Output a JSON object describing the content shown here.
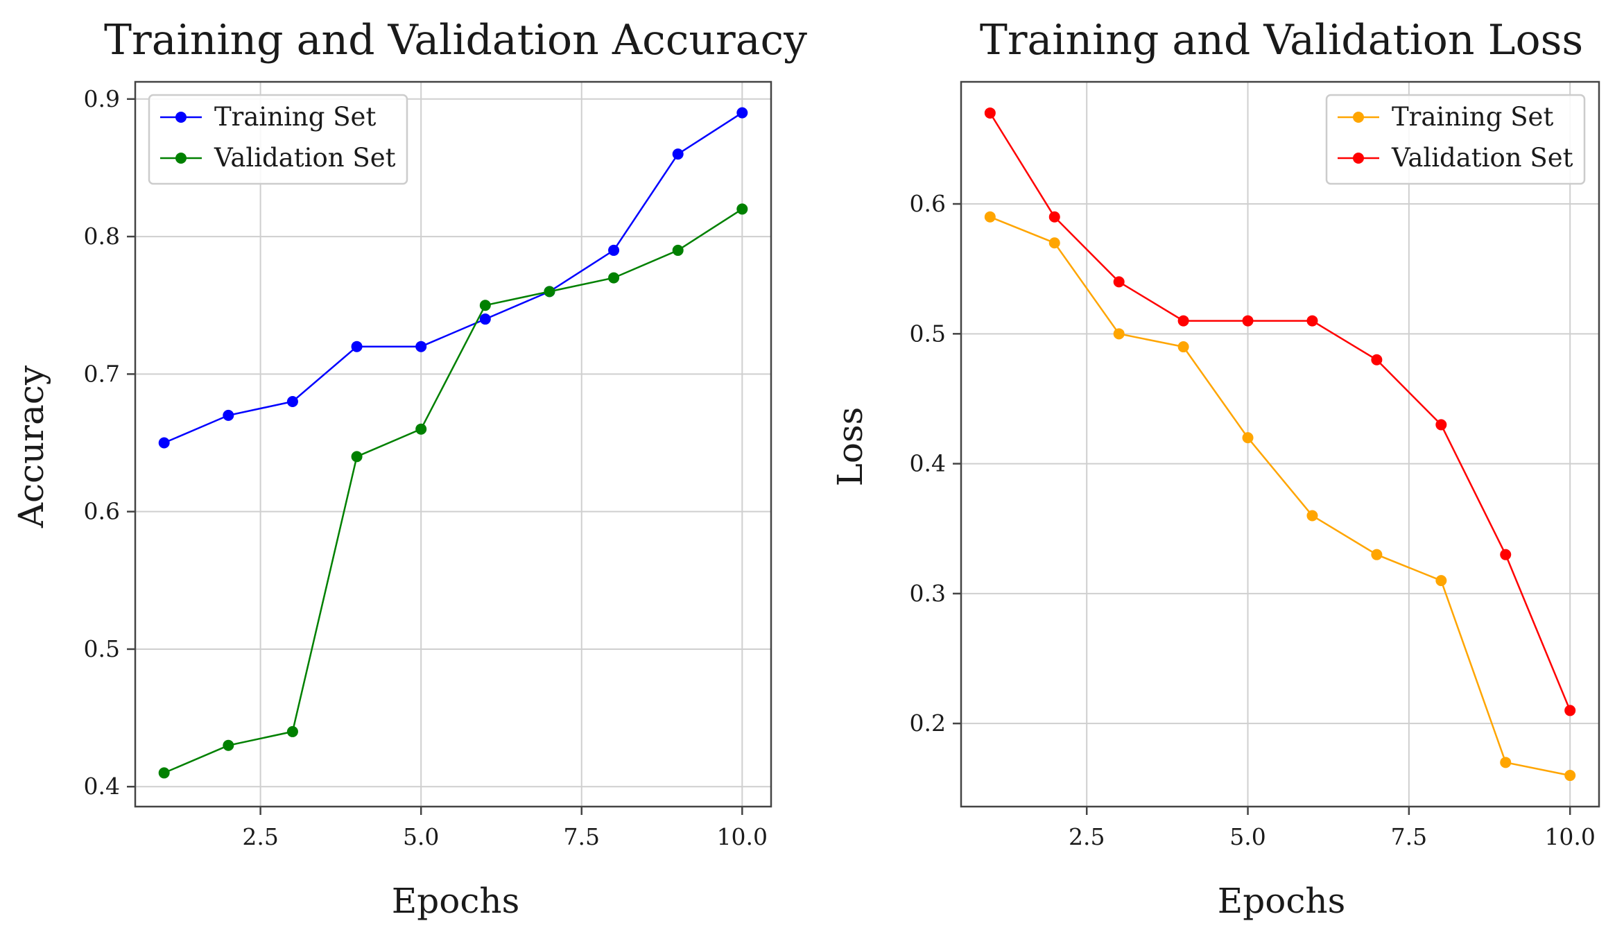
{
  "chart_data": [
    {
      "type": "line",
      "title": "Training and Validation Accuracy",
      "xlabel": "Epochs",
      "ylabel": "Accuracy",
      "x": [
        1,
        2,
        3,
        4,
        5,
        6,
        7,
        8,
        9,
        10
      ],
      "xlim": [
        0.55,
        10.45
      ],
      "ylim": [
        0.3855,
        0.9125
      ],
      "xticks": [
        2.5,
        5.0,
        7.5,
        10.0
      ],
      "xtick_labels": [
        "2.5",
        "5.0",
        "7.5",
        "10.0"
      ],
      "yticks": [
        0.4,
        0.5,
        0.6,
        0.7,
        0.8,
        0.9
      ],
      "ytick_labels": [
        "0.4",
        "0.5",
        "0.6",
        "0.7",
        "0.8",
        "0.9"
      ],
      "grid": true,
      "legend_position": "top-left",
      "series": [
        {
          "name": "Training Set",
          "color": "#0000ff",
          "values": [
            0.65,
            0.67,
            0.68,
            0.72,
            0.72,
            0.74,
            0.76,
            0.79,
            0.86,
            0.89
          ]
        },
        {
          "name": "Validation Set",
          "color": "#008000",
          "values": [
            0.41,
            0.43,
            0.44,
            0.64,
            0.66,
            0.75,
            0.76,
            0.77,
            0.79,
            0.82
          ]
        }
      ]
    },
    {
      "type": "line",
      "title": "Training and Validation Loss",
      "xlabel": "Epochs",
      "ylabel": "Loss",
      "x": [
        1,
        2,
        3,
        4,
        5,
        6,
        7,
        8,
        9,
        10
      ],
      "xlim": [
        0.55,
        10.45
      ],
      "ylim": [
        0.136,
        0.694
      ],
      "xticks": [
        2.5,
        5.0,
        7.5,
        10.0
      ],
      "xtick_labels": [
        "2.5",
        "5.0",
        "7.5",
        "10.0"
      ],
      "yticks": [
        0.2,
        0.3,
        0.4,
        0.5,
        0.6
      ],
      "ytick_labels": [
        "0.2",
        "0.3",
        "0.4",
        "0.5",
        "0.6"
      ],
      "grid": true,
      "legend_position": "top-right",
      "series": [
        {
          "name": "Training Set",
          "color": "#ffa500",
          "values": [
            0.59,
            0.57,
            0.5,
            0.49,
            0.42,
            0.36,
            0.33,
            0.31,
            0.17,
            0.16
          ]
        },
        {
          "name": "Validation Set",
          "color": "#ff0000",
          "values": [
            0.67,
            0.59,
            0.54,
            0.51,
            0.51,
            0.51,
            0.48,
            0.43,
            0.33,
            0.21
          ]
        }
      ]
    }
  ]
}
